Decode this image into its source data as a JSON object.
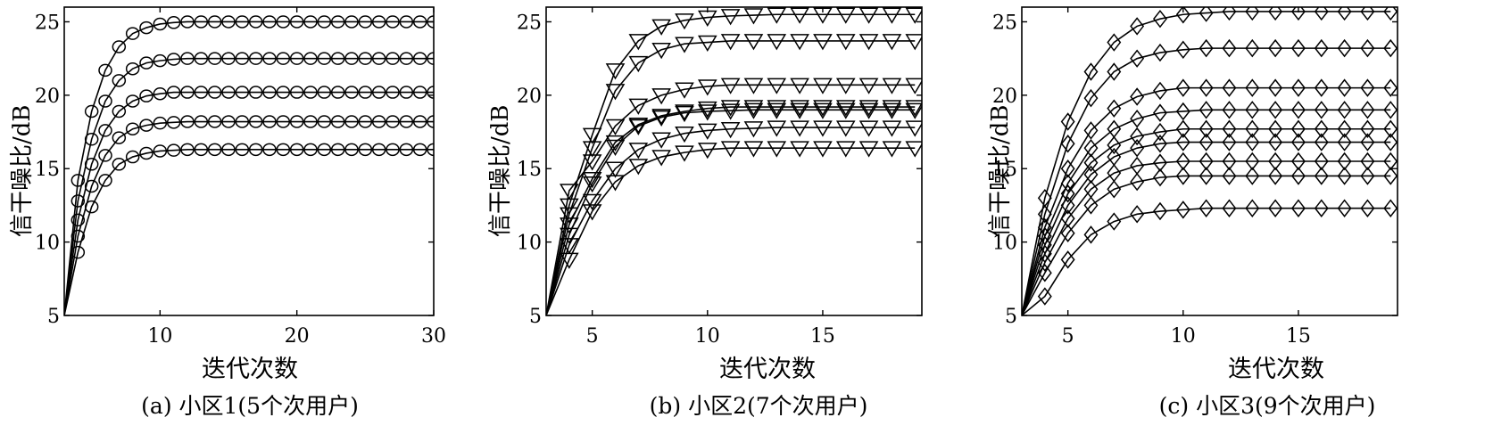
{
  "chart_data": [
    {
      "type": "line",
      "marker": "circle",
      "caption": "(a) 小区1(5个次用户)",
      "xlabel": "迭代次数",
      "ylabel": "信干噪比/dB",
      "xlim": [
        3,
        30
      ],
      "ylim": [
        5,
        26
      ],
      "xticks": [
        10,
        20,
        30
      ],
      "yticks": [
        5,
        10,
        15,
        20,
        25
      ],
      "x": [
        3,
        4,
        5,
        6,
        7,
        8,
        9,
        10,
        11,
        12,
        13,
        14,
        15,
        16,
        17,
        18,
        19,
        20,
        21,
        22,
        23,
        24,
        25,
        26,
        27,
        28,
        29,
        30
      ],
      "series": [
        {
          "values": [
            5.0,
            14.2,
            18.9,
            21.7,
            23.3,
            24.2,
            24.6,
            24.85,
            24.95,
            25.0,
            25.0,
            25.0,
            25.0,
            25.0,
            25.0,
            25.0,
            25.0,
            25.0,
            25.0,
            25.0,
            25.0,
            25.0,
            25.0,
            25.0,
            25.0,
            25.0,
            25.0,
            25.0
          ]
        },
        {
          "values": [
            5.0,
            12.8,
            17.0,
            19.6,
            21.0,
            21.8,
            22.2,
            22.35,
            22.45,
            22.5,
            22.5,
            22.5,
            22.5,
            22.5,
            22.5,
            22.5,
            22.5,
            22.5,
            22.5,
            22.5,
            22.5,
            22.5,
            22.5,
            22.5,
            22.5,
            22.5,
            22.5,
            22.5
          ]
        },
        {
          "values": [
            5.0,
            11.5,
            15.3,
            17.6,
            18.9,
            19.6,
            19.95,
            20.1,
            20.2,
            20.2,
            20.2,
            20.2,
            20.2,
            20.2,
            20.2,
            20.2,
            20.2,
            20.2,
            20.2,
            20.2,
            20.2,
            20.2,
            20.2,
            20.2,
            20.2,
            20.2,
            20.2,
            20.2
          ]
        },
        {
          "values": [
            5.0,
            10.4,
            13.8,
            15.9,
            17.1,
            17.7,
            17.95,
            18.1,
            18.15,
            18.2,
            18.2,
            18.2,
            18.2,
            18.2,
            18.2,
            18.2,
            18.2,
            18.2,
            18.2,
            18.2,
            18.2,
            18.2,
            18.2,
            18.2,
            18.2,
            18.2,
            18.2,
            18.2
          ]
        },
        {
          "values": [
            5.0,
            9.3,
            12.4,
            14.2,
            15.3,
            15.8,
            16.05,
            16.2,
            16.25,
            16.3,
            16.3,
            16.3,
            16.3,
            16.3,
            16.3,
            16.3,
            16.3,
            16.3,
            16.3,
            16.3,
            16.3,
            16.3,
            16.3,
            16.3,
            16.3,
            16.3,
            16.3,
            16.3
          ]
        }
      ]
    },
    {
      "type": "line",
      "marker": "triangle-down",
      "caption": "(b) 小区2(7个次用户)",
      "xlabel": "迭代次数",
      "ylabel": "信干噪比/dB",
      "xlim": [
        3,
        19.3
      ],
      "ylim": [
        5,
        26
      ],
      "xticks": [
        5,
        10,
        15
      ],
      "yticks": [
        5,
        10,
        15,
        20,
        25
      ],
      "x": [
        3,
        4,
        5,
        6,
        7,
        8,
        9,
        10,
        11,
        12,
        13,
        14,
        15,
        16,
        17,
        18,
        19
      ],
      "series": [
        {
          "values": [
            5.0,
            12.5,
            17.3,
            21.7,
            23.7,
            24.7,
            25.1,
            25.3,
            25.4,
            25.45,
            25.5,
            25.5,
            25.5,
            25.5,
            25.5,
            25.5,
            25.5
          ]
        },
        {
          "values": [
            5.0,
            11.9,
            16.4,
            20.3,
            22.2,
            23.1,
            23.5,
            23.6,
            23.7,
            23.7,
            23.7,
            23.7,
            23.7,
            23.7,
            23.7,
            23.7,
            23.7
          ]
        },
        {
          "values": [
            5.0,
            13.5,
            15.5,
            17.9,
            19.3,
            20.0,
            20.4,
            20.6,
            20.7,
            20.7,
            20.7,
            20.7,
            20.7,
            20.7,
            20.7,
            20.7,
            20.7
          ]
        },
        {
          "values": [
            5.0,
            11.2,
            14.3,
            16.8,
            18.0,
            18.6,
            18.9,
            19.1,
            19.2,
            19.2,
            19.2,
            19.2,
            19.2,
            19.2,
            19.2,
            19.2,
            19.2
          ]
        },
        {
          "values": [
            5.0,
            10.5,
            14.0,
            16.5,
            17.9,
            18.5,
            18.8,
            18.9,
            18.95,
            19.0,
            19.0,
            19.0,
            19.0,
            19.0,
            19.0,
            19.0,
            19.0
          ]
        },
        {
          "values": [
            5.0,
            9.8,
            12.8,
            15.0,
            16.3,
            17.0,
            17.4,
            17.6,
            17.7,
            17.75,
            17.8,
            17.8,
            17.8,
            17.8,
            17.8,
            17.8,
            17.8
          ]
        },
        {
          "values": [
            5.0,
            8.8,
            12.1,
            14.1,
            15.2,
            15.8,
            16.1,
            16.3,
            16.4,
            16.4,
            16.4,
            16.4,
            16.4,
            16.4,
            16.4,
            16.4,
            16.4
          ]
        }
      ]
    },
    {
      "type": "line",
      "marker": "diamond",
      "caption": "(c) 小区3(9个次用户)",
      "xlabel": "迭代次数",
      "ylabel": "信干噪比/dB",
      "xlim": [
        3,
        19.3
      ],
      "ylim": [
        5,
        26
      ],
      "xticks": [
        5,
        10,
        15
      ],
      "yticks": [
        5,
        10,
        15,
        20,
        25
      ],
      "x": [
        3,
        4,
        5,
        6,
        7,
        8,
        9,
        10,
        11,
        12,
        13,
        14,
        15,
        16,
        17,
        18,
        19
      ],
      "series": [
        {
          "values": [
            5.0,
            13.0,
            18.2,
            21.6,
            23.6,
            24.7,
            25.2,
            25.5,
            25.6,
            25.7,
            25.7,
            25.7,
            25.7,
            25.7,
            25.7,
            25.7,
            25.7
          ]
        },
        {
          "values": [
            5.0,
            11.9,
            16.7,
            19.8,
            21.6,
            22.5,
            22.9,
            23.1,
            23.2,
            23.2,
            23.2,
            23.2,
            23.2,
            23.2,
            23.2,
            23.2,
            23.2
          ]
        },
        {
          "values": [
            5.0,
            11.0,
            15.0,
            17.6,
            19.1,
            19.9,
            20.3,
            20.5,
            20.5,
            20.5,
            20.5,
            20.5,
            20.5,
            20.5,
            20.5,
            20.5,
            20.5
          ]
        },
        {
          "values": [
            5.0,
            10.4,
            14.0,
            16.4,
            17.7,
            18.4,
            18.8,
            18.9,
            19.0,
            19.0,
            19.0,
            19.0,
            19.0,
            19.0,
            19.0,
            19.0,
            19.0
          ]
        },
        {
          "values": [
            5.0,
            9.8,
            13.3,
            15.4,
            16.6,
            17.2,
            17.5,
            17.7,
            17.7,
            17.7,
            17.7,
            17.7,
            17.7,
            17.7,
            17.7,
            17.7,
            17.7
          ]
        },
        {
          "values": [
            5.0,
            9.2,
            12.5,
            14.6,
            15.8,
            16.4,
            16.7,
            16.8,
            16.8,
            16.8,
            16.8,
            16.8,
            16.8,
            16.8,
            16.8,
            16.8,
            16.8
          ]
        },
        {
          "values": [
            5.0,
            8.6,
            11.6,
            13.6,
            14.7,
            15.2,
            15.4,
            15.5,
            15.5,
            15.5,
            15.5,
            15.5,
            15.5,
            15.5,
            15.5,
            15.5,
            15.5
          ]
        },
        {
          "values": [
            5.0,
            7.9,
            10.6,
            12.5,
            13.6,
            14.1,
            14.4,
            14.5,
            14.5,
            14.5,
            14.5,
            14.5,
            14.5,
            14.5,
            14.5,
            14.5,
            14.5
          ]
        },
        {
          "values": [
            5.0,
            6.3,
            8.8,
            10.5,
            11.4,
            11.9,
            12.1,
            12.2,
            12.3,
            12.3,
            12.3,
            12.3,
            12.3,
            12.3,
            12.3,
            12.3,
            12.3
          ]
        }
      ]
    }
  ]
}
